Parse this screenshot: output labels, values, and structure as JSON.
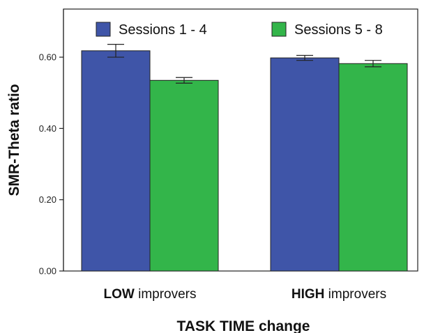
{
  "chart_data": {
    "type": "bar",
    "xlabel": "TASK TIME change",
    "ylabel": "SMR-Theta ratio",
    "categories": [
      {
        "bold": "LOW",
        "rest": " improvers"
      },
      {
        "bold": "HIGH",
        "rest": " improvers"
      }
    ],
    "series": [
      {
        "name": "Sessions 1 - 4",
        "color": "#3f55a8",
        "values": [
          0.618,
          0.598
        ],
        "errors": [
          0.018,
          0.007
        ]
      },
      {
        "name": "Sessions 5 - 8",
        "color": "#33b54a",
        "values": [
          0.535,
          0.582
        ],
        "errors": [
          0.008,
          0.009
        ]
      }
    ],
    "ylim": [
      0,
      0.735
    ],
    "yticks": [
      "0.00",
      "0.20",
      "0.40",
      "0.60"
    ],
    "legend_position": "top",
    "grid": false
  }
}
